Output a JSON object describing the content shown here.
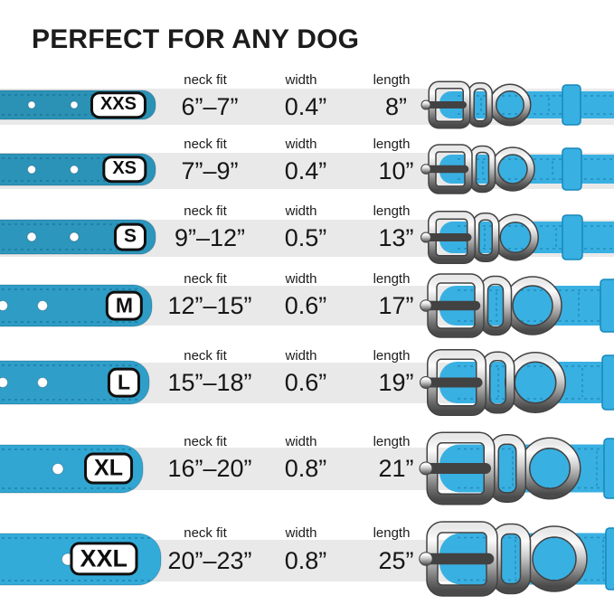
{
  "title": "PERFECT FOR ANY DOG",
  "columns": {
    "neck_fit": "neck fit",
    "width": "width",
    "length": "length"
  },
  "colors": {
    "collar_blue": "#39b0e2",
    "strap_teal": "#2b92b6",
    "band_gray": "#e9e9e9",
    "metal_silver": "#c9c9c9",
    "text_black": "#1c1c1c",
    "badge_bg": "#ffffff",
    "badge_border": "#0f0f0f"
  },
  "rows": [
    {
      "size": "XXS",
      "neck_fit": "6”–7”",
      "width": "0.4”",
      "length": "8”"
    },
    {
      "size": "XS",
      "neck_fit": "7”–9”",
      "width": "0.4”",
      "length": "10”"
    },
    {
      "size": "S",
      "neck_fit": "9”–12”",
      "width": "0.5”",
      "length": "13”"
    },
    {
      "size": "M",
      "neck_fit": "12”–15”",
      "width": "0.6”",
      "length": "17”"
    },
    {
      "size": "L",
      "neck_fit": "15”–18”",
      "width": "0.6”",
      "length": "19”"
    },
    {
      "size": "XL",
      "neck_fit": "16”–20”",
      "width": "0.8”",
      "length": "21”"
    },
    {
      "size": "XXL",
      "neck_fit": "20”–23”",
      "width": "0.8”",
      "length": "25”"
    }
  ]
}
